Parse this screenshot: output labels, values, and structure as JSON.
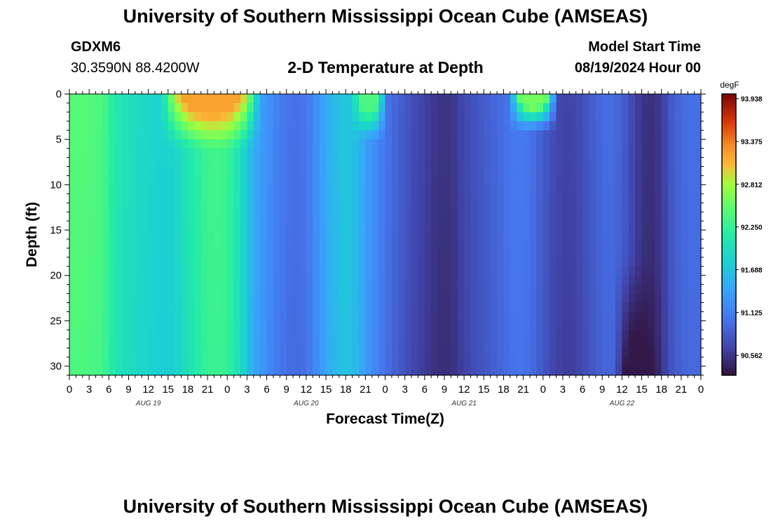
{
  "header": {
    "title": "University of Southern Mississippi Ocean Cube (AMSEAS)",
    "station_id": "GDXM6",
    "station_coords": "30.3590N  88.4200W",
    "subtitle": "2-D Temperature at Depth",
    "model_label": "Model Start Time",
    "model_start": "08/19/2024 Hour 00"
  },
  "footer": {
    "title": "University of Southern Mississippi Ocean Cube (AMSEAS)"
  },
  "chart_data": {
    "type": "heatmap",
    "title": "2-D Temperature at Depth",
    "xlabel": "Forecast Time(Z)",
    "ylabel": "Depth (ft)",
    "colorbar_label": "degF",
    "colorbar_ticks": [
      "93.938",
      "93.375",
      "92.812",
      "92.250",
      "91.688",
      "91.125",
      "90.562"
    ],
    "value_range": [
      90.3,
      94.0
    ],
    "x_hours": [
      0,
      96
    ],
    "x_tick_labels": [
      "0",
      "3",
      "6",
      "9",
      "12",
      "15",
      "18",
      "21",
      "0",
      "3",
      "6",
      "9",
      "12",
      "15",
      "18",
      "21",
      "0",
      "3",
      "6",
      "9",
      "12",
      "15",
      "18",
      "21",
      "0",
      "3",
      "6",
      "9",
      "12",
      "15",
      "18",
      "21",
      "0"
    ],
    "day_labels": [
      {
        "label": "AUG 19",
        "hour": 12
      },
      {
        "label": "AUG 20",
        "hour": 36
      },
      {
        "label": "AUG 21",
        "hour": 60
      },
      {
        "label": "AUG 22",
        "hour": 84
      }
    ],
    "y_ticks": [
      "0",
      "5",
      "10",
      "15",
      "20",
      "25",
      "30"
    ],
    "ylim": [
      0,
      31
    ],
    "base_profile": {
      "hours": [
        0,
        2,
        5,
        7,
        10,
        13,
        15,
        17,
        20,
        22,
        24,
        26,
        27,
        28,
        30,
        32,
        34,
        36,
        38,
        40,
        42,
        44,
        45,
        47,
        48,
        50,
        52,
        54,
        56,
        58,
        60,
        62,
        64,
        66,
        68,
        70,
        72,
        74,
        76,
        78,
        80,
        82,
        84,
        86,
        88,
        90,
        92,
        94,
        96
      ],
      "degF": [
        92.45,
        92.45,
        92.4,
        92.1,
        91.95,
        91.85,
        91.8,
        91.95,
        92.25,
        92.35,
        92.3,
        92.0,
        91.75,
        91.5,
        91.3,
        91.1,
        91.0,
        91.05,
        91.35,
        91.6,
        91.75,
        91.6,
        91.4,
        91.2,
        91.05,
        90.9,
        90.75,
        90.65,
        90.55,
        90.55,
        90.7,
        90.8,
        90.9,
        91.0,
        91.1,
        91.05,
        90.85,
        90.7,
        90.65,
        90.75,
        90.9,
        91.0,
        90.9,
        90.65,
        90.5,
        90.6,
        90.9,
        91.0,
        91.0
      ]
    },
    "features": [
      {
        "hour_start": 15,
        "hour_end": 28,
        "depth_max": 5.5,
        "degF": 93.2,
        "note": "surface warm patch"
      },
      {
        "hour_start": 44,
        "hour_end": 47,
        "depth_max": 4.5,
        "degF": 92.4,
        "note": "surface warm patch"
      },
      {
        "hour_start": 68,
        "hour_end": 73,
        "depth_max": 3.5,
        "degF": 92.6,
        "note": "surface warm patch"
      },
      {
        "hour_start": 84,
        "hour_end": 89,
        "depth_max": 31,
        "degF": 90.35,
        "note": "cold column near bottom"
      }
    ]
  }
}
